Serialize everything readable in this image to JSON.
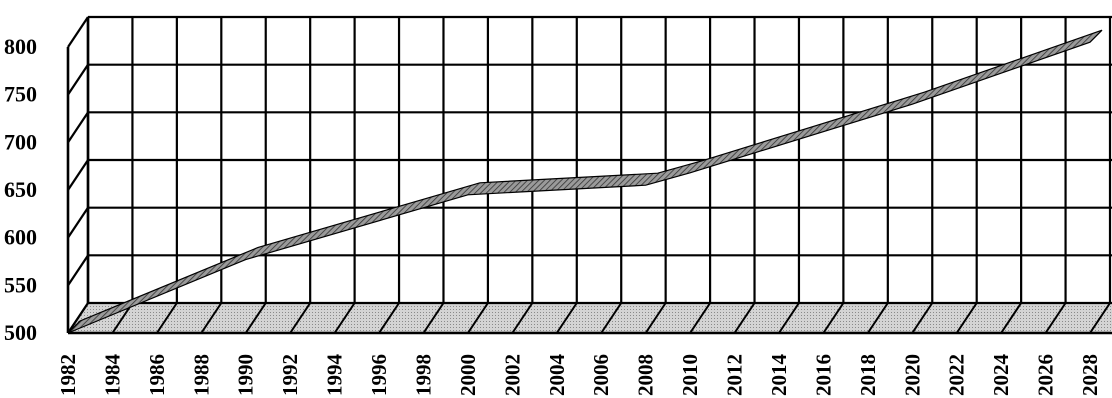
{
  "chart_data": {
    "type": "line",
    "title": "",
    "xlabel": "",
    "ylabel": "",
    "ylim": [
      500,
      800
    ],
    "yticks": [
      "500",
      "550",
      "600",
      "650",
      "700",
      "750",
      "800"
    ],
    "xticks": [
      "1982",
      "1984",
      "1986",
      "1988",
      "1990",
      "1992",
      "1994",
      "1996",
      "1998",
      "2000",
      "2002",
      "2004",
      "2006",
      "2008",
      "2010",
      "2012",
      "2014",
      "2016",
      "2018",
      "2020",
      "2022",
      "2024",
      "2026",
      "2028"
    ],
    "x": [
      1982,
      1990,
      2000,
      2008,
      2010,
      2020,
      2028
    ],
    "values": [
      500,
      577,
      645,
      655,
      668,
      740,
      805
    ],
    "style": "3d-ribbon",
    "grid": true,
    "colors": {
      "ribbon": "#7a7a7a",
      "floor": "#c8c8c8",
      "grid": "#000000"
    }
  }
}
